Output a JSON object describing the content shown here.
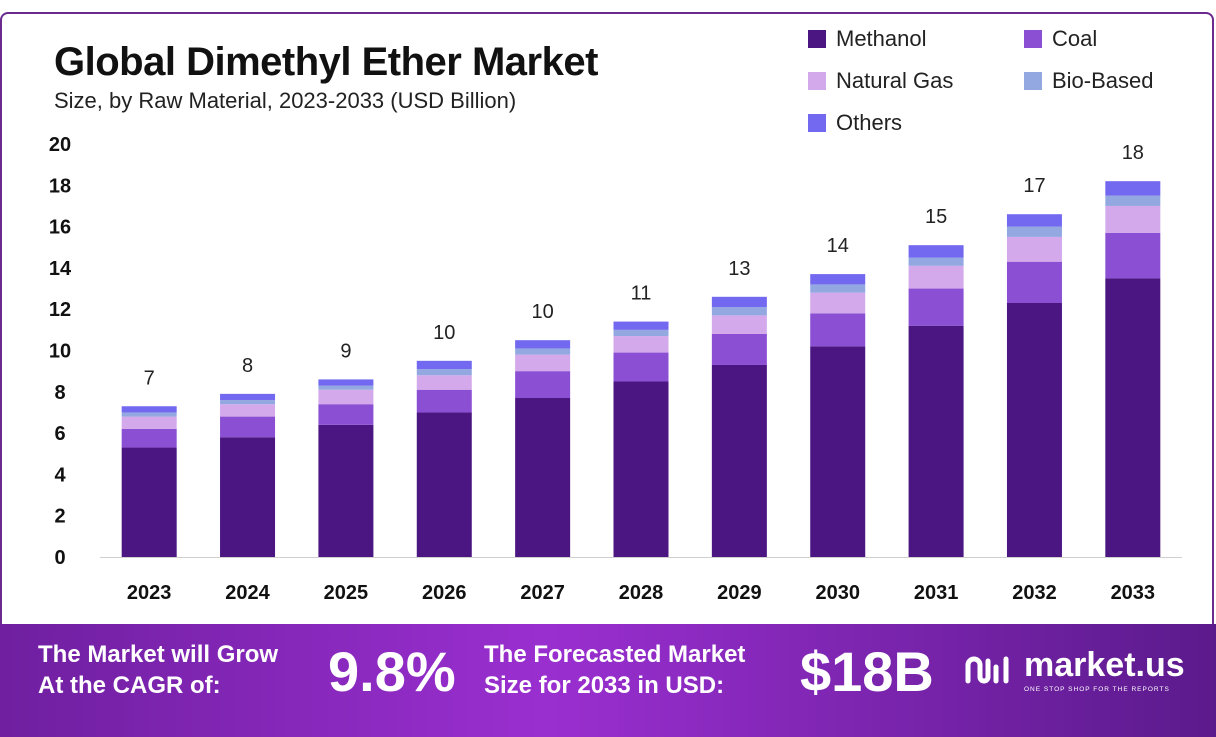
{
  "chart_data": {
    "type": "bar",
    "stacked": true,
    "title": "Global Dimethyl Ether Market",
    "subtitle": "Size, by Raw Material, 2023-2033 (USD Billion)",
    "categories": [
      "2023",
      "2024",
      "2025",
      "2026",
      "2027",
      "2028",
      "2029",
      "2030",
      "2031",
      "2032",
      "2033"
    ],
    "totals_labels": [
      "7",
      "8",
      "9",
      "10",
      "10",
      "11",
      "13",
      "14",
      "15",
      "17",
      "18"
    ],
    "series": [
      {
        "name": "Methanol",
        "color": "#4b1582",
        "values": [
          5.3,
          5.8,
          6.4,
          7.0,
          7.7,
          8.5,
          9.3,
          10.2,
          11.2,
          12.3,
          13.5
        ]
      },
      {
        "name": "Coal",
        "color": "#8a4fd3",
        "values": [
          0.9,
          1.0,
          1.0,
          1.1,
          1.3,
          1.4,
          1.5,
          1.6,
          1.8,
          2.0,
          2.2
        ]
      },
      {
        "name": "Natural Gas",
        "color": "#d4a9ec",
        "values": [
          0.6,
          0.6,
          0.7,
          0.7,
          0.8,
          0.8,
          0.9,
          1.0,
          1.1,
          1.2,
          1.3
        ]
      },
      {
        "name": "Bio-Based",
        "color": "#93a8e0",
        "values": [
          0.2,
          0.2,
          0.2,
          0.3,
          0.3,
          0.3,
          0.4,
          0.4,
          0.4,
          0.5,
          0.5
        ]
      },
      {
        "name": "Others",
        "color": "#7369f0",
        "values": [
          0.3,
          0.3,
          0.3,
          0.4,
          0.4,
          0.4,
          0.5,
          0.5,
          0.6,
          0.6,
          0.7
        ]
      }
    ],
    "yticks": [
      0,
      2,
      4,
      6,
      8,
      10,
      12,
      14,
      16,
      18,
      20
    ],
    "ylim": [
      0,
      20
    ],
    "grid": false,
    "legend_position": "top-right"
  },
  "footer": {
    "cagr_label_line1": "The Market will Grow",
    "cagr_label_line2": "At the CAGR of:",
    "cagr_value": "9.8%",
    "forecast_label_line1": "The Forecasted Market",
    "forecast_label_line2": "Size for 2033 in USD:",
    "forecast_value": "$18B",
    "logo_name": "market.us",
    "logo_tagline": "ONE STOP SHOP FOR THE REPORTS"
  }
}
